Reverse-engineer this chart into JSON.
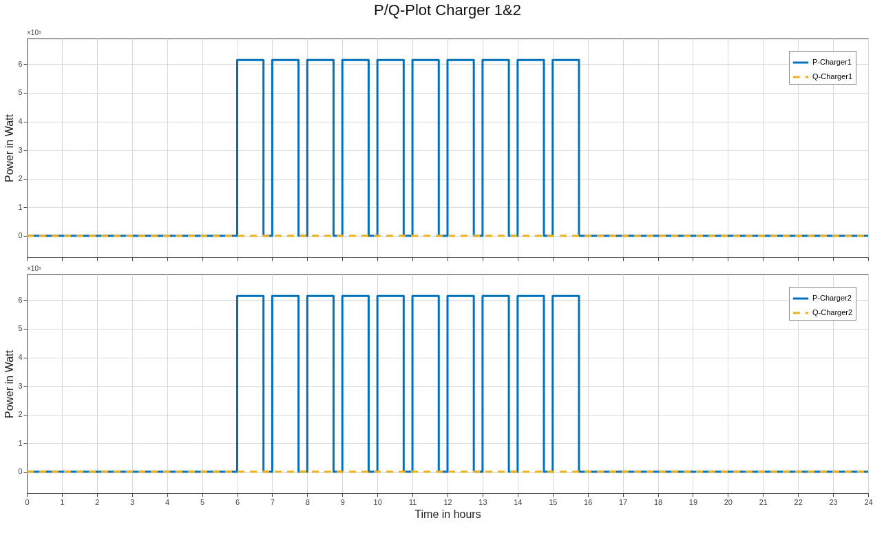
{
  "chart_data": [
    {
      "type": "line",
      "title": "P/Q-Plot Charger 1&2",
      "ylabel": "Power in Watt",
      "annotations": [
        "×10⁵"
      ],
      "xlim": [
        0,
        24
      ],
      "xticks": [
        0,
        1,
        2,
        3,
        4,
        5,
        6,
        7,
        8,
        9,
        10,
        11,
        12,
        13,
        14,
        15,
        16,
        17,
        18,
        19,
        20,
        21,
        22,
        23,
        24
      ],
      "ylim": [
        -0.75,
        6.9
      ],
      "yticks": [
        0,
        1,
        2,
        3,
        4,
        5,
        6
      ],
      "grid": true,
      "legend": "top right",
      "tick_labels": "y",
      "series": [
        {
          "name": "P-Charger1",
          "type": "step",
          "color": "#0072bd",
          "line_style": "solid",
          "x": [
            0,
            6,
            6.75,
            7,
            7.75,
            8,
            8.75,
            9,
            9.75,
            10,
            10.75,
            11,
            11.75,
            12,
            12.75,
            13,
            13.75,
            14,
            14.75,
            15,
            15.75,
            24
          ],
          "values": [
            0,
            6.15,
            0,
            6.15,
            0,
            6.15,
            0,
            6.15,
            0,
            6.15,
            0,
            6.15,
            0,
            6.15,
            0,
            6.15,
            0,
            6.15,
            0,
            6.15,
            0,
            0
          ]
        },
        {
          "name": "Q-Charger1",
          "color": "#edb120",
          "line_style": "dashed",
          "x": [
            0,
            24
          ],
          "values": [
            0,
            0
          ]
        }
      ]
    },
    {
      "type": "line",
      "xlabel": "Time in hours",
      "ylabel": "Power in Watt",
      "annotations": [
        "×10⁵"
      ],
      "xlim": [
        0,
        24
      ],
      "xticks": [
        0,
        1,
        2,
        3,
        4,
        5,
        6,
        7,
        8,
        9,
        10,
        11,
        12,
        13,
        14,
        15,
        16,
        17,
        18,
        19,
        20,
        21,
        22,
        23,
        24
      ],
      "ylim": [
        -0.75,
        6.9
      ],
      "yticks": [
        0,
        1,
        2,
        3,
        4,
        5,
        6
      ],
      "grid": true,
      "legend": "top right",
      "series": [
        {
          "name": "P-Charger2",
          "type": "step",
          "color": "#0072bd",
          "line_style": "solid",
          "x": [
            0,
            6,
            6.75,
            7,
            7.75,
            8,
            8.75,
            9,
            9.75,
            10,
            10.75,
            11,
            11.75,
            12,
            12.75,
            13,
            13.75,
            14,
            14.75,
            15,
            15.75,
            24
          ],
          "values": [
            0,
            6.15,
            0,
            6.15,
            0,
            6.15,
            0,
            6.15,
            0,
            6.15,
            0,
            6.15,
            0,
            6.15,
            0,
            6.15,
            0,
            6.15,
            0,
            6.15,
            0,
            0
          ]
        },
        {
          "name": "Q-Charger2",
          "color": "#edb120",
          "line_style": "dashed",
          "x": [
            0,
            24
          ],
          "values": [
            0,
            0
          ]
        }
      ]
    }
  ]
}
